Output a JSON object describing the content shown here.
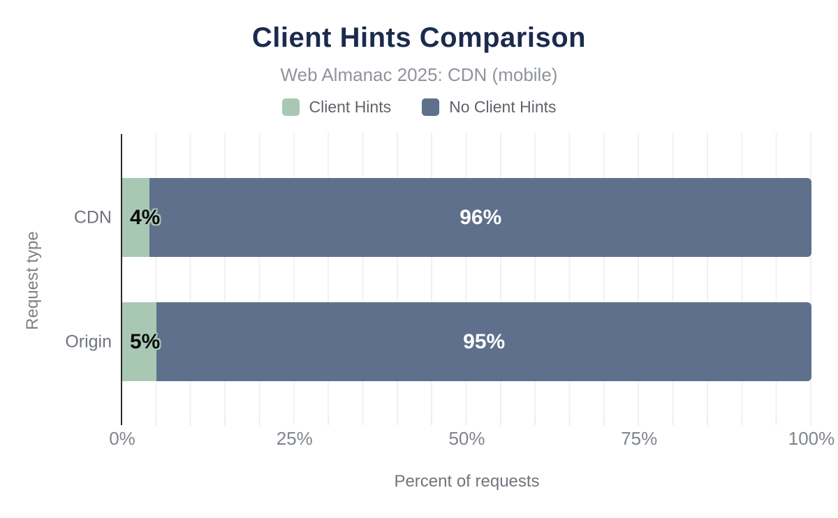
{
  "chart_data": {
    "type": "bar",
    "orientation": "horizontal",
    "stacked": true,
    "title": "Client Hints Comparison",
    "subtitle": "Web Almanac 2025: CDN (mobile)",
    "xlabel": "Percent of requests",
    "ylabel": "Request type",
    "categories": [
      "CDN",
      "Origin"
    ],
    "series": [
      {
        "name": "Client Hints",
        "color": "#a8c8b4",
        "values": [
          4,
          5
        ],
        "labels": [
          "4%",
          "5%"
        ]
      },
      {
        "name": "No Client Hints",
        "color": "#5e708b",
        "values": [
          96,
          95
        ],
        "labels": [
          "96%",
          "95%"
        ]
      }
    ],
    "xlim": [
      0,
      100
    ],
    "x_ticks": [
      {
        "value": 0,
        "label": "0%"
      },
      {
        "value": 25,
        "label": "25%"
      },
      {
        "value": 50,
        "label": "50%"
      },
      {
        "value": 75,
        "label": "75%"
      },
      {
        "value": 100,
        "label": "100%"
      }
    ],
    "grid": true,
    "grid_step_percent": 5,
    "legend_position": "top",
    "colors": {
      "title": "#1b2b4d",
      "subtitle": "#8f949b",
      "axis_text": "#70757c",
      "axis_line": "#2b2b2b",
      "value_label_dark": "#0c0c0c",
      "value_label_light": "#ffffff"
    }
  }
}
